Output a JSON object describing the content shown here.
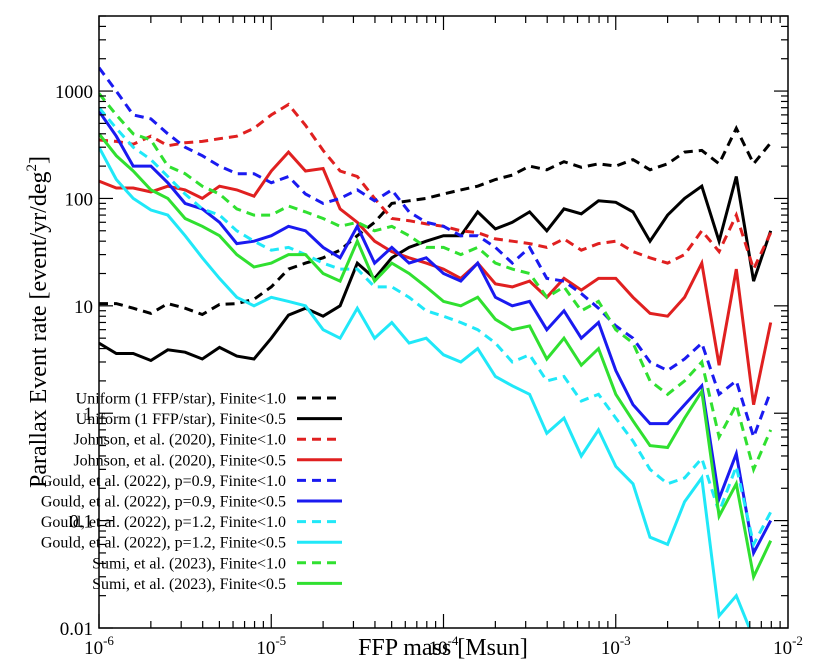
{
  "chart_data": {
    "type": "line",
    "xscale": "log",
    "yscale": "log",
    "xlim": [
      1e-06,
      0.01
    ],
    "ylim": [
      0.01,
      5000
    ],
    "xlabel": "FFP mass [Msun]",
    "ylabel": "Parallax Event rate [event/yr/deg",
    "ylabel_sup": "2",
    "ylabel_end": "]",
    "xticks": [
      {
        "base": "10",
        "exp": "-6",
        "value": 1e-06
      },
      {
        "base": "10",
        "exp": "-5",
        "value": 1e-05
      },
      {
        "base": "10",
        "exp": "-4",
        "value": 0.0001
      },
      {
        "base": "10",
        "exp": "-3",
        "value": 0.001
      },
      {
        "base": "10",
        "exp": "-2",
        "value": 0.01
      }
    ],
    "yticks": [
      {
        "label": "0.01",
        "value": 0.01
      },
      {
        "label": "0.1",
        "value": 0.1
      },
      {
        "label": "1",
        "value": 1
      },
      {
        "label": "10",
        "value": 10
      },
      {
        "label": "100",
        "value": 100
      },
      {
        "label": "1000",
        "value": 1000
      }
    ],
    "legend_position": "bottom-left",
    "x": [
      1e-06,
      1.26e-06,
      1.58e-06,
      2e-06,
      2.51e-06,
      3.16e-06,
      3.98e-06,
      5.01e-06,
      6.31e-06,
      7.94e-06,
      1e-05,
      1.26e-05,
      1.58e-05,
      2e-05,
      2.51e-05,
      3.16e-05,
      3.98e-05,
      5.01e-05,
      6.31e-05,
      7.94e-05,
      0.0001,
      0.000126,
      0.000158,
      0.0002,
      0.000251,
      0.000316,
      0.000398,
      0.000501,
      0.000631,
      0.000794,
      0.001,
      0.00126,
      0.00158,
      0.002,
      0.00251,
      0.00316,
      0.00398,
      0.00501,
      0.00631,
      0.00794
    ],
    "series": [
      {
        "name": "Uniform (1 FFP/star), Finite<1.0",
        "color": "#000000",
        "dash": true,
        "values": [
          10.5,
          10.5,
          9.5,
          8.5,
          10.5,
          9.5,
          8.3,
          10.3,
          10.5,
          11.5,
          15,
          22,
          25,
          28,
          33,
          45,
          60,
          90,
          95,
          100,
          110,
          120,
          130,
          150,
          165,
          200,
          185,
          220,
          195,
          210,
          200,
          230,
          185,
          210,
          270,
          280,
          210,
          450,
          210,
          330
        ]
      },
      {
        "name": "Uniform (1 FFP/star), Finite<0.5",
        "color": "#000000",
        "dash": false,
        "values": [
          4.5,
          3.6,
          3.6,
          3.1,
          3.9,
          3.7,
          3.2,
          4.1,
          3.4,
          3.2,
          5,
          8.2,
          9.5,
          8,
          10,
          25,
          18,
          28,
          35,
          40,
          45,
          45,
          75,
          52,
          60,
          75,
          50,
          80,
          72,
          95,
          92,
          75,
          40,
          70,
          100,
          130,
          40,
          160,
          17,
          50
        ]
      },
      {
        "name": "Johnson, et al. (2020), Finite<1.0",
        "color": "#e02020",
        "dash": true,
        "values": [
          350,
          340,
          320,
          380,
          310,
          330,
          340,
          360,
          380,
          450,
          600,
          750,
          480,
          280,
          180,
          160,
          100,
          65,
          62,
          58,
          55,
          50,
          48,
          42,
          40,
          38,
          35,
          42,
          33,
          38,
          40,
          32,
          28,
          25,
          30,
          50,
          32,
          70,
          22,
          48
        ]
      },
      {
        "name": "Johnson, et al. (2020), Finite<0.5",
        "color": "#e02020",
        "dash": false,
        "values": [
          145,
          125,
          125,
          115,
          130,
          120,
          100,
          130,
          120,
          105,
          180,
          270,
          180,
          190,
          80,
          60,
          40,
          32,
          28,
          25,
          22,
          18,
          25,
          16,
          15,
          17,
          12,
          18,
          14,
          18,
          18,
          12,
          8.5,
          8,
          12,
          25,
          2.8,
          22,
          1.2,
          7
        ]
      },
      {
        "name": "Gould, et al. (2022), p=0.9, Finite<1.0",
        "color": "#1a1af0",
        "dash": true,
        "values": [
          1650,
          1000,
          600,
          550,
          400,
          300,
          250,
          200,
          170,
          170,
          140,
          160,
          110,
          90,
          100,
          120,
          95,
          120,
          75,
          60,
          55,
          45,
          45,
          35,
          25,
          35,
          18,
          17,
          13,
          9.5,
          6.5,
          5,
          3,
          2.5,
          3.2,
          4.5,
          1.5,
          2,
          0.6,
          1.6
        ]
      },
      {
        "name": "Gould, et al. (2022), p=0.9, Finite<0.5",
        "color": "#1a1af0",
        "dash": false,
        "values": [
          650,
          380,
          200,
          200,
          140,
          90,
          80,
          60,
          38,
          40,
          45,
          55,
          50,
          35,
          28,
          55,
          25,
          35,
          25,
          28,
          20,
          17,
          25,
          12,
          10,
          11,
          6,
          9,
          5,
          7,
          2.5,
          1.2,
          0.8,
          0.8,
          1.2,
          1.8,
          0.16,
          0.42,
          0.05,
          0.1
        ]
      },
      {
        "name": "Gould, et al. (2022), p=1.2, Finite<1.0",
        "color": "#20e8f8",
        "dash": true,
        "values": [
          700,
          450,
          300,
          230,
          160,
          110,
          80,
          70,
          50,
          40,
          33,
          35,
          30,
          25,
          22,
          22,
          15,
          15,
          12,
          9,
          8,
          7,
          6,
          4.5,
          3,
          3.5,
          2,
          2.2,
          1.3,
          1.5,
          0.9,
          0.55,
          0.3,
          0.22,
          0.25,
          0.38,
          0.12,
          0.32,
          0.06,
          0.12
        ]
      },
      {
        "name": "Gould, et al. (2022), p=1.2, Finite<0.5",
        "color": "#20e8f8",
        "dash": false,
        "values": [
          300,
          150,
          100,
          78,
          70,
          45,
          28,
          18,
          12,
          10,
          12,
          11,
          10,
          6,
          5,
          9.5,
          5,
          7,
          4.5,
          5,
          3.5,
          3,
          4,
          2.2,
          1.8,
          1.5,
          0.65,
          0.9,
          0.4,
          0.7,
          0.32,
          0.22,
          0.07,
          0.06,
          0.15,
          0.25,
          0.013,
          0.02,
          0.008,
          0.005
        ]
      },
      {
        "name": "Sumi, et al. (2023), Finite<1.0",
        "color": "#30e030",
        "dash": true,
        "values": [
          950,
          600,
          400,
          350,
          200,
          170,
          130,
          110,
          80,
          70,
          70,
          85,
          75,
          65,
          55,
          60,
          50,
          55,
          45,
          35,
          35,
          30,
          35,
          25,
          22,
          20,
          12,
          15,
          9,
          11,
          6,
          4.5,
          2,
          1.5,
          2,
          3,
          0.6,
          1.2,
          0.3,
          0.7
        ]
      },
      {
        "name": "Sumi, et al. (2023), Finite<0.5",
        "color": "#30e030",
        "dash": false,
        "values": [
          400,
          250,
          180,
          120,
          100,
          65,
          55,
          45,
          30,
          23,
          25,
          30,
          30,
          20,
          17,
          40,
          17,
          25,
          20,
          15,
          11,
          10,
          12,
          7.5,
          6,
          6.5,
          3.2,
          5,
          2.8,
          4,
          1.5,
          0.85,
          0.5,
          0.48,
          0.9,
          1.6,
          0.11,
          0.22,
          0.03,
          0.065
        ]
      }
    ]
  }
}
